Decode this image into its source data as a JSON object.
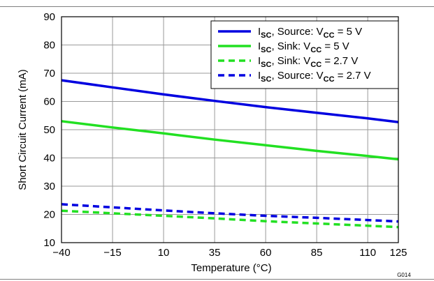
{
  "chart_data": {
    "type": "line",
    "figure_id": "G014",
    "xlabel": "Temperature (°C)",
    "ylabel": "Short Circuit Current (mA)",
    "xlim": [
      -40,
      125
    ],
    "ylim": [
      10,
      90
    ],
    "xticks": [
      -40,
      -15,
      10,
      35,
      60,
      85,
      110,
      125
    ],
    "xtick_labels": [
      "−40",
      "−15",
      "10",
      "35",
      "60",
      "85",
      "110",
      "125"
    ],
    "yticks": [
      10,
      20,
      30,
      40,
      50,
      60,
      70,
      80,
      90
    ],
    "grid": true,
    "legend_position": "top-right",
    "series": [
      {
        "name": "ISC, Source: VCC = 5 V",
        "legend": {
          "main": "I",
          "sub": "SC",
          "mid": ", Source: V",
          "sub2": "CC",
          "tail": " =  5 V"
        },
        "color": "#0000e0",
        "dash": false,
        "x": [
          -40,
          -15,
          10,
          35,
          60,
          85,
          110,
          125
        ],
        "y": [
          67.5,
          65,
          62.5,
          60.2,
          58,
          56,
          54,
          52.7
        ]
      },
      {
        "name": "ISC, Sink: VCC = 5 V",
        "legend": {
          "main": "I",
          "sub": "SC",
          "mid": ", Sink: V",
          "sub2": "CC",
          "tail": " =  5 V"
        },
        "color": "#22e022",
        "dash": false,
        "x": [
          -40,
          -15,
          10,
          35,
          60,
          85,
          110,
          125
        ],
        "y": [
          53,
          50.8,
          48.7,
          46.5,
          44.5,
          42.5,
          40.7,
          39.5
        ]
      },
      {
        "name": "ISC, Sink: VCC = 2.7 V",
        "legend": {
          "main": "I",
          "sub": "SC",
          "mid": ", Sink: V",
          "sub2": "CC",
          "tail": " =  2.7 V"
        },
        "color": "#22e022",
        "dash": true,
        "x": [
          -40,
          -15,
          10,
          35,
          60,
          85,
          110,
          125
        ],
        "y": [
          21.3,
          20.4,
          19.5,
          18.6,
          17.6,
          16.8,
          16,
          15.5
        ]
      },
      {
        "name": "ISC, Source: VCC = 2.7 V",
        "legend": {
          "main": "I",
          "sub": "SC",
          "mid": ", Source: V",
          "sub2": "CC",
          "tail": " =  2.7 V"
        },
        "color": "#0000e0",
        "dash": true,
        "x": [
          -40,
          -15,
          10,
          35,
          60,
          85,
          110,
          125
        ],
        "y": [
          23.6,
          22.5,
          21.4,
          20.4,
          19.5,
          18.8,
          18,
          17.5
        ]
      }
    ]
  }
}
